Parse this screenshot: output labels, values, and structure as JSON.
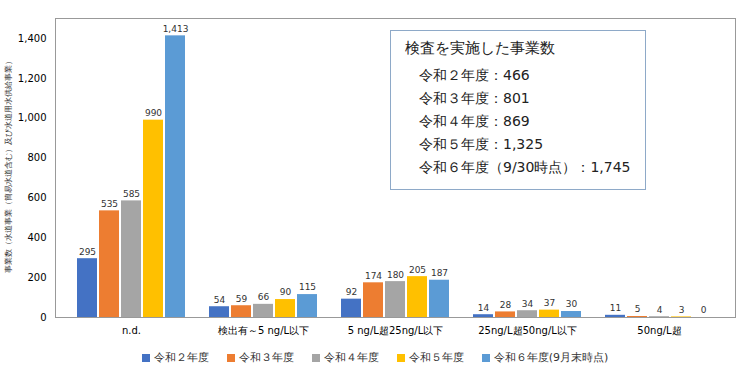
{
  "chart_data": {
    "type": "bar",
    "y_label": "事業数（水道事業（簡易水道含む）及び水道用水供給事業）",
    "categories": [
      "n.d.",
      "検出有～5 ng/L以下",
      "5 ng/L超25ng/L以下",
      "25ng/L超50ng/L以下",
      "50ng/L超"
    ],
    "series": [
      {
        "name": "令和２年度",
        "color": "#4472c4",
        "values": [
          295,
          54,
          92,
          14,
          11
        ]
      },
      {
        "name": "令和３年度",
        "color": "#ed7d31",
        "values": [
          535,
          59,
          174,
          28,
          5
        ]
      },
      {
        "name": "令和４年度",
        "color": "#a5a5a5",
        "values": [
          585,
          66,
          180,
          34,
          4
        ]
      },
      {
        "name": "令和５年度",
        "color": "#ffc000",
        "values": [
          990,
          90,
          205,
          37,
          3
        ]
      },
      {
        "name": "令和６年度(9月末時点)",
        "color": "#5b9bd5",
        "values": [
          1413,
          115,
          187,
          30,
          0
        ],
        "value_labels": [
          "1,413",
          "115",
          "187",
          "30",
          "0"
        ]
      }
    ],
    "ylim": [
      0,
      1500
    ],
    "yticks": [
      0,
      200,
      400,
      600,
      800,
      1000,
      1200,
      1400
    ],
    "grid": false,
    "data_labels": true,
    "legend": "bottom",
    "annotation": {
      "title": "検査を実施した事業数",
      "lines": [
        "令和２年度：466",
        "令和３年度：801",
        "令和４年度：869",
        "令和５年度：1,325",
        "令和６年度（9/30時点）：1,745"
      ]
    }
  }
}
